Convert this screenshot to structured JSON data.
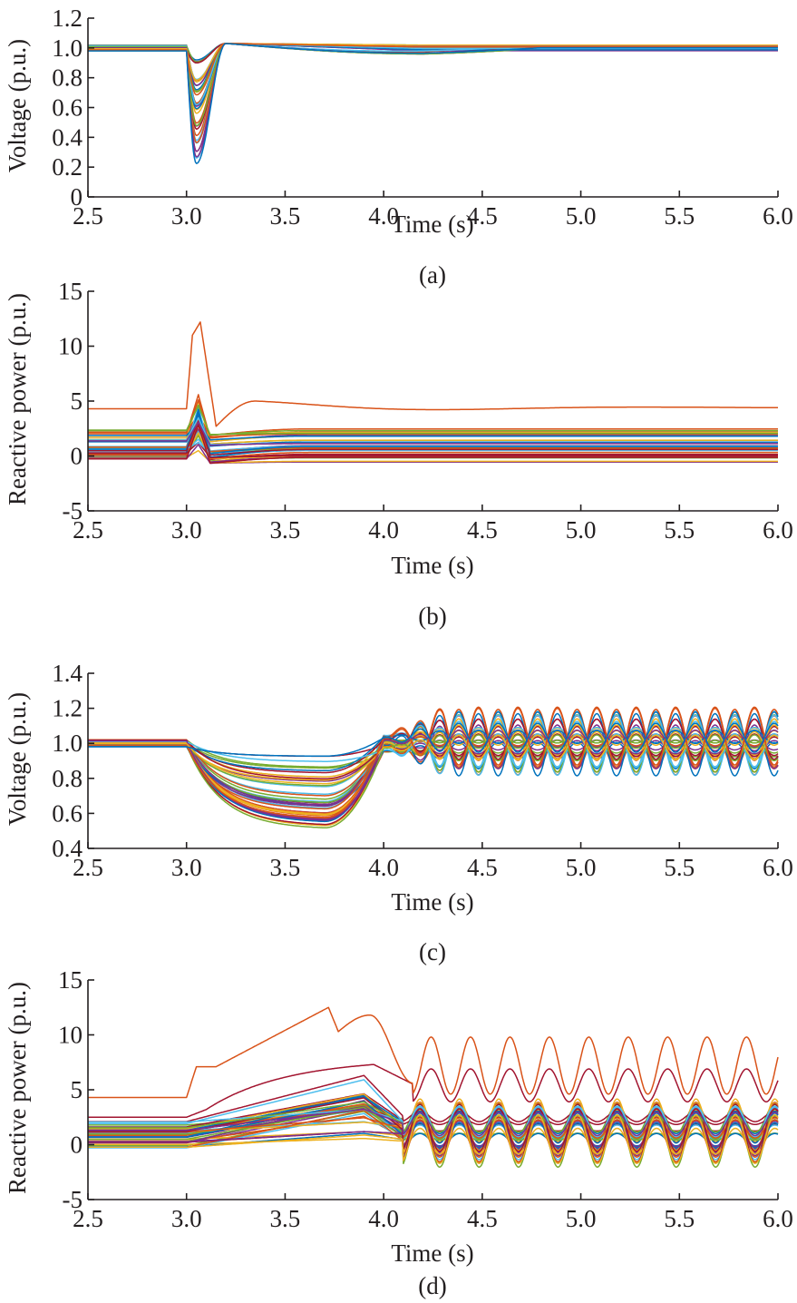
{
  "figure": {
    "colors": [
      "#0072bd",
      "#d95319",
      "#edb120",
      "#7e2f8e",
      "#77ac30",
      "#4dbeee",
      "#a2142f"
    ]
  },
  "chart_data": [
    {
      "id": "a",
      "type": "line",
      "panel_label": "(a)",
      "title": "",
      "xlabel": "Time (s)",
      "ylabel": "Voltage (p.u.)",
      "xlim": [
        2.5,
        6.0
      ],
      "ylim": [
        0,
        1.2
      ],
      "xticks": [
        2.5,
        3.0,
        3.5,
        4.0,
        4.5,
        5.0,
        5.5,
        6.0
      ],
      "xtick_labels": [
        "2.5",
        "3.0",
        "3.5",
        "4.0",
        "4.5",
        "5.0",
        "5.5",
        "6.0"
      ],
      "yticks": [
        0,
        0.2,
        0.4,
        0.6,
        0.8,
        1.0,
        1.2
      ],
      "ytick_labels": [
        "0",
        "0.2",
        "0.4",
        "0.6",
        "0.8",
        "1.0",
        "1.2"
      ],
      "grid": false,
      "legend": "none",
      "description": "Many bus voltage traces; fault at t=3.0 s causes dips to 0.2-0.9 p.u. minimum at ~3.05 s, recovery by ~3.2 s, settling near 1.0 p.u.",
      "series_summary": {
        "count_approx": 40,
        "pre_fault_range": [
          0.98,
          1.02
        ],
        "dip_time": 3.05,
        "dip_minimum_range": [
          0.21,
          0.92
        ],
        "overshoot_peak": 1.03,
        "final_value_range": [
          0.98,
          1.02
        ]
      }
    },
    {
      "id": "b",
      "type": "line",
      "panel_label": "(b)",
      "title": "",
      "xlabel": "Time (s)",
      "ylabel": "Reactive power (p.u.)",
      "xlim": [
        2.5,
        6.0
      ],
      "ylim": [
        -5,
        15
      ],
      "xticks": [
        2.5,
        3.0,
        3.5,
        4.0,
        4.5,
        5.0,
        5.5,
        6.0
      ],
      "xtick_labels": [
        "2.5",
        "3.0",
        "3.5",
        "4.0",
        "4.5",
        "5.0",
        "5.5",
        "6.0"
      ],
      "yticks": [
        -5,
        0,
        5,
        10,
        15
      ],
      "ytick_labels": [
        "-5",
        "0",
        "5",
        "10",
        "15"
      ],
      "grid": false,
      "legend": "none",
      "description": "Reactive power traces; largest trace starts at 4.3 p.u., spikes to 12.2 p.u. at ~3.06 s, dips to 2.7 at 3.15 s, settles near 4.5-5 p.u.",
      "series_summary": {
        "count_approx": 40,
        "max_trace_pre": 4.3,
        "max_trace_peak": 12.2,
        "max_trace_final": 4.4,
        "others_pre_range": [
          -0.3,
          2.5
        ],
        "others_peak_range": [
          0.5,
          5.9
        ],
        "others_final_range": [
          -0.3,
          2.5
        ]
      }
    },
    {
      "id": "c",
      "type": "line",
      "panel_label": "(c)",
      "title": "",
      "xlabel": "Time (s)",
      "ylabel": "Voltage (p.u.)",
      "xlim": [
        2.5,
        6.0
      ],
      "ylim": [
        0.4,
        1.4
      ],
      "xticks": [
        2.5,
        3.0,
        3.5,
        4.0,
        4.5,
        5.0,
        5.5,
        6.0
      ],
      "xtick_labels": [
        "2.5",
        "3.0",
        "3.5",
        "4.0",
        "4.5",
        "5.0",
        "5.5",
        "6.0"
      ],
      "yticks": [
        0.4,
        0.6,
        0.8,
        1.0,
        1.2,
        1.4
      ],
      "ytick_labels": [
        "0.4",
        "0.6",
        "0.8",
        "1.0",
        "1.2",
        "1.4"
      ],
      "grid": false,
      "legend": "none",
      "description": "Voltages sag gradually from 3.0 s to minima 0.51-0.95 p.u. near 3.7 s, then sustained oscillations (~5 Hz period ~0.2 s) between ~0.77 and ~1.24 p.u. after 4.0 s.",
      "series_summary": {
        "count_approx": 40,
        "pre_fault_range": [
          0.98,
          1.02
        ],
        "sag_minimum_range": [
          0.51,
          0.95
        ],
        "sag_minimum_time": 3.7,
        "oscillation_period_s": 0.2,
        "oscillation_max": 1.24,
        "oscillation_min": 0.77
      }
    },
    {
      "id": "d",
      "type": "line",
      "panel_label": "(d)",
      "title": "",
      "xlabel": "Time (s)",
      "ylabel": "Reactive power (p.u.)",
      "xlim": [
        2.5,
        6.0
      ],
      "ylim": [
        -5,
        15
      ],
      "xticks": [
        2.5,
        3.0,
        3.5,
        4.0,
        4.5,
        5.0,
        5.5,
        6.0
      ],
      "xtick_labels": [
        "2.5",
        "3.0",
        "3.5",
        "4.0",
        "4.5",
        "5.0",
        "5.5",
        "6.0"
      ],
      "yticks": [
        -5,
        0,
        5,
        10,
        15
      ],
      "ytick_labels": [
        "-5",
        "0",
        "5",
        "10",
        "15"
      ],
      "grid": false,
      "legend": "none",
      "description": "Reactive power rises after 3.0 s; largest trace from 4.3 to 7.1 then ramps to 12.5 at 3.72 s, 11.8 at 3.93 s, then oscillates between ~4.5 and ~9.9 p.u.; others oscillate between about -0.8 and 7.3.",
      "series_summary": {
        "count_approx": 40,
        "max_trace_pre": 4.3,
        "max_trace_peak": 12.5,
        "max_trace_peak_time": 3.72,
        "max_trace_osc_range": [
          4.5,
          9.9
        ],
        "second_trace_peak": 7.3,
        "others_osc_range": [
          -0.8,
          7.3
        ]
      }
    }
  ]
}
